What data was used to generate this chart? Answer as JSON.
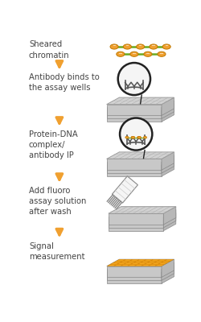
{
  "background_color": "#ffffff",
  "text_color": "#444444",
  "arrow_color": "#f0a030",
  "steps": [
    {
      "label": "Sheared\nchromatin"
    },
    {
      "label": "Antibody binds to\nthe assay wells"
    },
    {
      "label": "Protein-DNA\ncomplex/\nantibody IP"
    },
    {
      "label": "Add fluoro\nassay solution\nafter wash"
    },
    {
      "label": "Signal\nmeasurement"
    }
  ],
  "plate_top_color": "#e0e0e0",
  "plate_side_color": "#c8c8c8",
  "plate_right_color": "#b8b8b8",
  "plate_grid_color": "#aaaaaa",
  "chromatin_bead_color": "#f0a030",
  "chromatin_bead_edge": "#c07800",
  "chromatin_line_color": "#6aaa20",
  "signal_orange": "#f0a030",
  "signal_cell_color": "#f5a820",
  "signal_cell_edge": "#d08000",
  "circle_bg": "#f5f5f5",
  "circle_edge": "#222222",
  "well_color": "#555555",
  "antibody_color": "#555555",
  "callout_color": "#222222",
  "pipette_face": "#f5f5f5",
  "pipette_edge": "#888888",
  "pipette_stripe": "#cccccc"
}
